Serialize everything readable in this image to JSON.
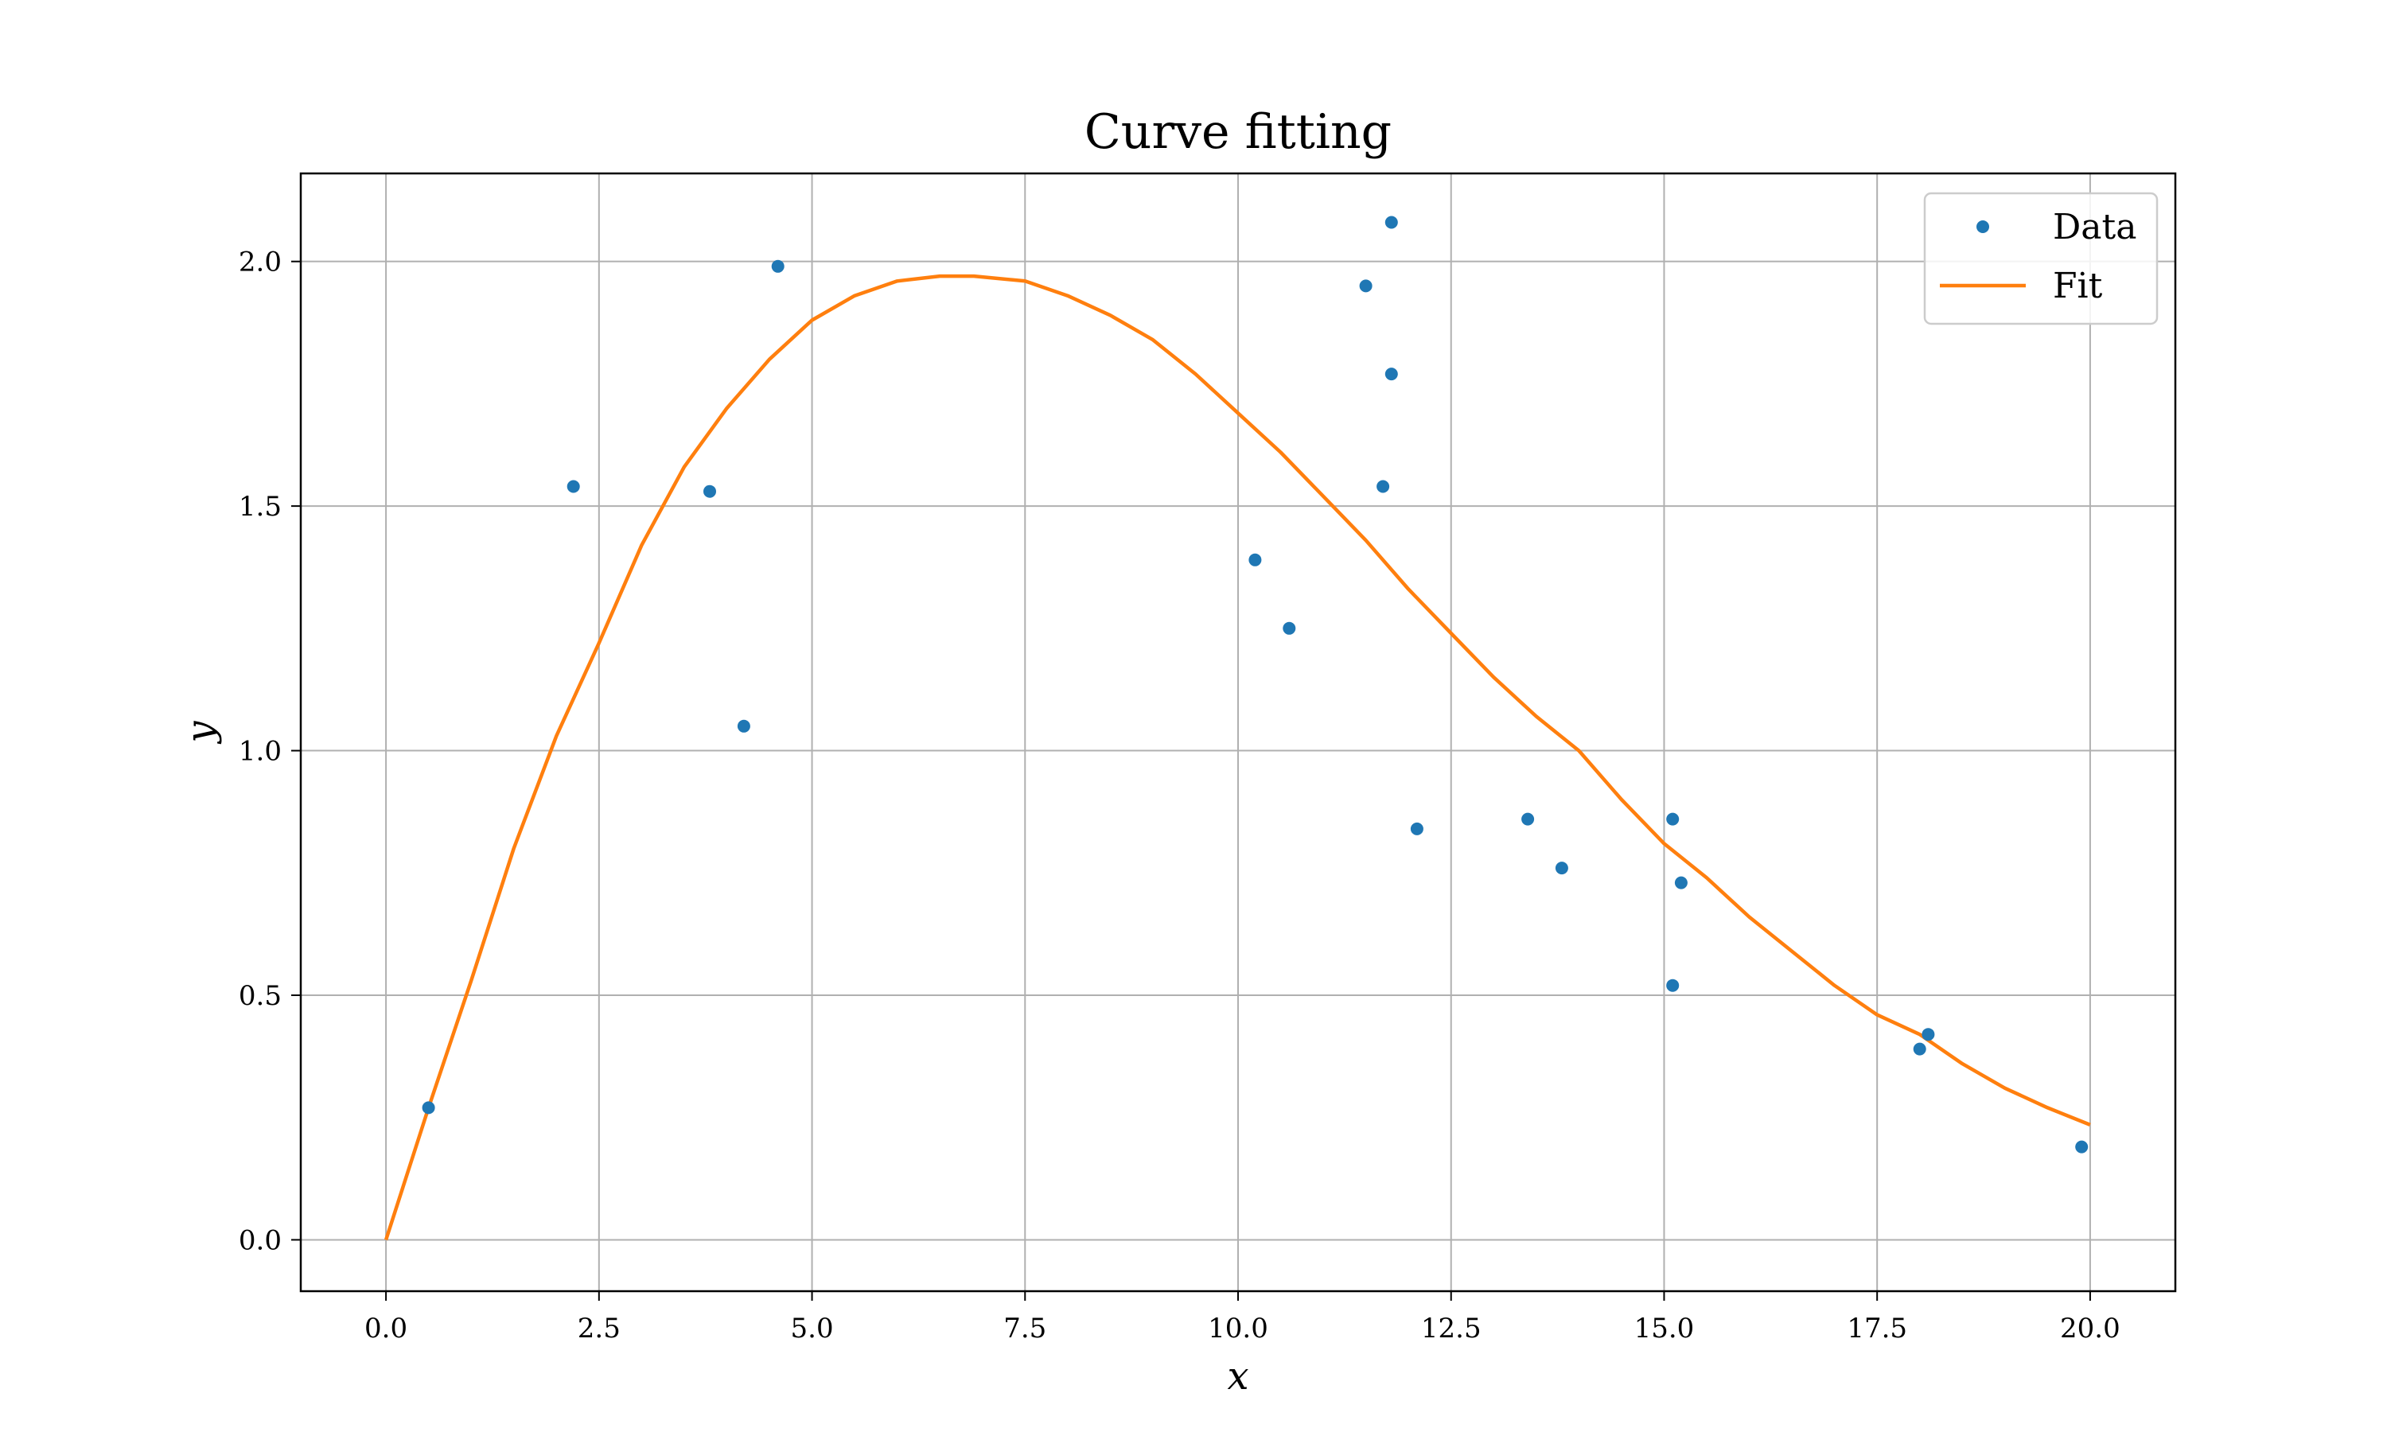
{
  "chart_data": {
    "type": "scatter",
    "title": "Curve fitting",
    "xlabel": "x",
    "ylabel": "y",
    "xlim": [
      -1,
      21
    ],
    "ylim": [
      -0.105,
      2.18
    ],
    "grid": true,
    "legend_position": "top-right",
    "x_ticks": [
      0.0,
      2.5,
      5.0,
      7.5,
      10.0,
      12.5,
      15.0,
      17.5,
      20.0
    ],
    "x_tick_labels": [
      "0.0",
      "2.5",
      "5.0",
      "7.5",
      "10.0",
      "12.5",
      "15.0",
      "17.5",
      "20.0"
    ],
    "y_ticks": [
      0.0,
      0.5,
      1.0,
      1.5,
      2.0
    ],
    "y_tick_labels": [
      "0.0",
      "0.5",
      "1.0",
      "1.5",
      "2.0"
    ],
    "series": [
      {
        "name": "Data",
        "kind": "markers",
        "color": "#1f77b4",
        "points": [
          [
            0.5,
            0.27
          ],
          [
            2.2,
            1.54
          ],
          [
            3.8,
            1.53
          ],
          [
            4.2,
            1.05
          ],
          [
            4.6,
            1.99
          ],
          [
            10.2,
            1.39
          ],
          [
            10.6,
            1.25
          ],
          [
            11.5,
            1.95
          ],
          [
            11.7,
            1.54
          ],
          [
            11.8,
            2.08
          ],
          [
            11.8,
            1.77
          ],
          [
            12.1,
            0.84
          ],
          [
            13.4,
            0.86
          ],
          [
            13.8,
            0.76
          ],
          [
            15.1,
            0.86
          ],
          [
            15.1,
            0.52
          ],
          [
            15.2,
            0.73
          ],
          [
            18.0,
            0.39
          ],
          [
            18.1,
            0.42
          ],
          [
            19.9,
            0.19
          ]
        ]
      },
      {
        "name": "Fit",
        "kind": "line",
        "color": "#ff7f0e",
        "points": [
          [
            0.0,
            0.0
          ],
          [
            0.5,
            0.27
          ],
          [
            1.0,
            0.53
          ],
          [
            1.5,
            0.8
          ],
          [
            2.0,
            1.03
          ],
          [
            2.5,
            1.22
          ],
          [
            3.0,
            1.42
          ],
          [
            3.5,
            1.58
          ],
          [
            4.0,
            1.7
          ],
          [
            4.5,
            1.8
          ],
          [
            5.0,
            1.88
          ],
          [
            5.5,
            1.93
          ],
          [
            6.0,
            1.96
          ],
          [
            6.5,
            1.97
          ],
          [
            6.9,
            1.97
          ],
          [
            7.5,
            1.96
          ],
          [
            8.0,
            1.93
          ],
          [
            8.5,
            1.89
          ],
          [
            9.0,
            1.84
          ],
          [
            9.5,
            1.77
          ],
          [
            10.0,
            1.69
          ],
          [
            10.5,
            1.61
          ],
          [
            11.0,
            1.52
          ],
          [
            11.5,
            1.43
          ],
          [
            12.0,
            1.33
          ],
          [
            12.5,
            1.24
          ],
          [
            13.0,
            1.15
          ],
          [
            13.5,
            1.07
          ],
          [
            14.0,
            1.0
          ],
          [
            14.5,
            0.9
          ],
          [
            15.0,
            0.81
          ],
          [
            15.5,
            0.74
          ],
          [
            16.0,
            0.66
          ],
          [
            16.5,
            0.59
          ],
          [
            17.0,
            0.52
          ],
          [
            17.5,
            0.46
          ],
          [
            18.0,
            0.42
          ],
          [
            18.5,
            0.36
          ],
          [
            19.0,
            0.31
          ],
          [
            19.5,
            0.27
          ],
          [
            20.0,
            0.235
          ]
        ]
      }
    ]
  }
}
